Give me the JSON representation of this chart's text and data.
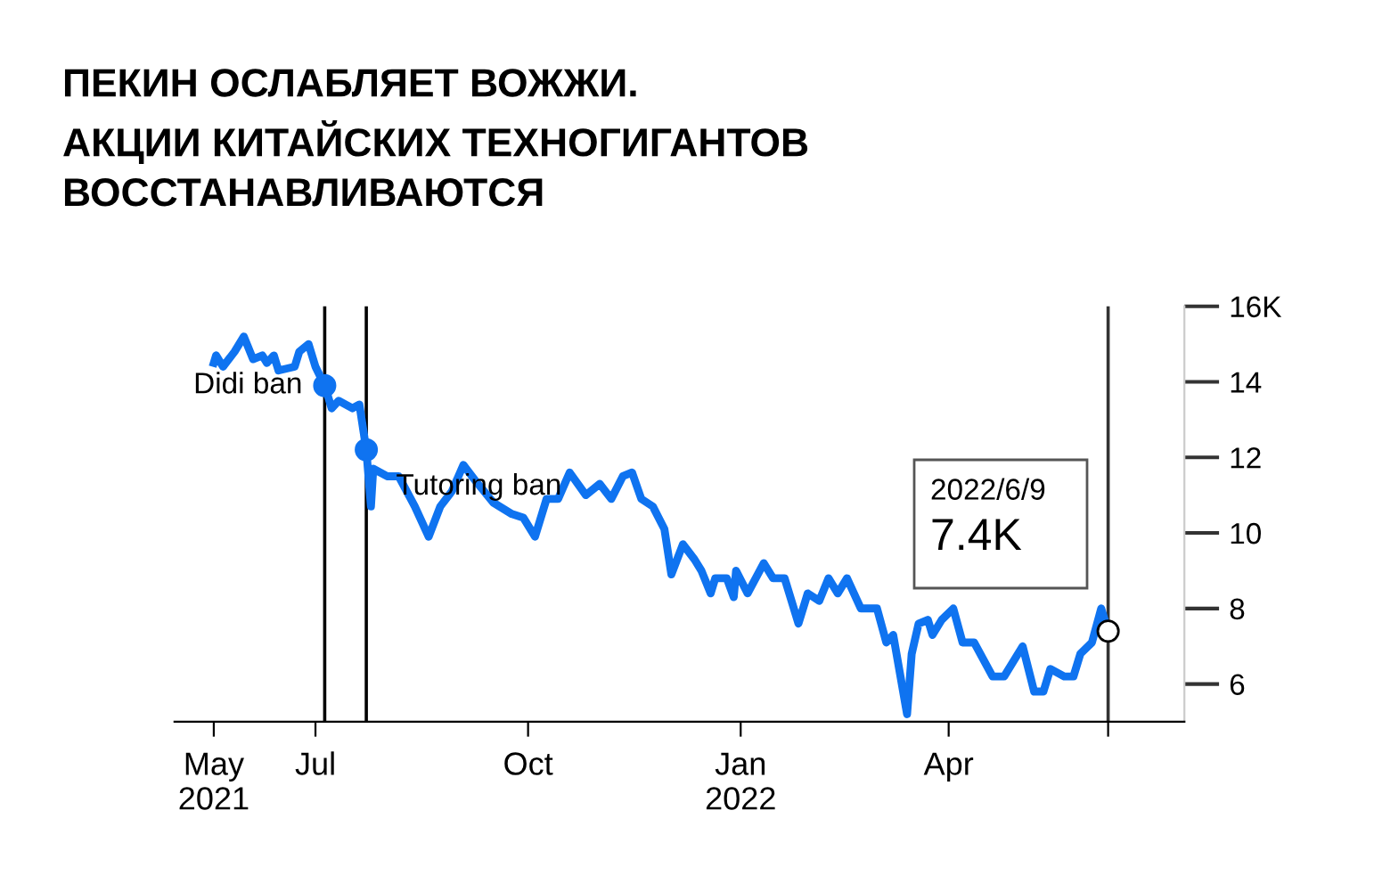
{
  "chart_data": {
    "type": "line",
    "title": "ПЕКИН ОСЛАБЛЯЕТ ВОЖЖИ.\nАКЦИИ КИТАЙСКИХ ТЕХНОГИГАНТОВ\nВОССТАНАВЛИВАЮТСЯ",
    "series": [
      {
        "color": "#0f73f0",
        "x": [
          "2021-05-18",
          "2021-05-19",
          "2021-05-22",
          "2021-05-27",
          "2021-05-31",
          "2021-06-04",
          "2021-06-08",
          "2021-06-10",
          "2021-06-13",
          "2021-06-15",
          "2021-06-22",
          "2021-06-24",
          "2021-06-28",
          "2021-07-01",
          "2021-07-05",
          "2021-07-08",
          "2021-07-11",
          "2021-07-17",
          "2021-07-20",
          "2021-07-23",
          "2021-07-25",
          "2021-07-26",
          "2021-08-01",
          "2021-08-06",
          "2021-08-13",
          "2021-08-19",
          "2021-08-24",
          "2021-08-29",
          "2021-09-03",
          "2021-09-08",
          "2021-09-16",
          "2021-09-24",
          "2021-09-29",
          "2021-10-04",
          "2021-10-09",
          "2021-10-14",
          "2021-10-19",
          "2021-10-26",
          "2021-11-01",
          "2021-11-06",
          "2021-11-11",
          "2021-11-15",
          "2021-11-19",
          "2021-11-24",
          "2021-11-29",
          "2021-12-02",
          "2021-12-07",
          "2021-12-12",
          "2021-12-15",
          "2021-12-19",
          "2021-12-21",
          "2021-12-26",
          "2021-12-29",
          "2021-12-30",
          "2022-01-04",
          "2022-01-11",
          "2022-01-15",
          "2022-01-20",
          "2022-01-26",
          "2022-01-30",
          "2022-02-04",
          "2022-02-08",
          "2022-02-12",
          "2022-02-16",
          "2022-02-22",
          "2022-03-01",
          "2022-03-05",
          "2022-03-08",
          "2022-03-14",
          "2022-03-16",
          "2022-03-19",
          "2022-03-23",
          "2022-03-25",
          "2022-03-29",
          "2022-04-03",
          "2022-04-07",
          "2022-04-12",
          "2022-04-20",
          "2022-04-25",
          "2022-05-03",
          "2022-05-08",
          "2022-05-12",
          "2022-05-15",
          "2022-05-21",
          "2022-05-25",
          "2022-05-28",
          "2022-06-02",
          "2022-06-06",
          "2022-06-09"
        ],
        "values": [
          14.5,
          14.7,
          14.4,
          14.8,
          15.2,
          14.6,
          14.7,
          14.5,
          14.7,
          14.3,
          14.4,
          14.8,
          15.0,
          14.4,
          13.9,
          13.3,
          13.5,
          13.3,
          13.4,
          12.2,
          10.7,
          11.7,
          11.5,
          11.5,
          10.7,
          9.9,
          10.7,
          11.1,
          11.8,
          11.4,
          10.8,
          10.5,
          10.4,
          9.9,
          10.9,
          10.9,
          11.6,
          11.0,
          11.3,
          10.9,
          11.5,
          11.6,
          10.9,
          10.7,
          10.1,
          8.9,
          9.7,
          9.3,
          9.0,
          8.4,
          8.8,
          8.8,
          8.3,
          9.0,
          8.4,
          9.2,
          8.8,
          8.8,
          7.6,
          8.4,
          8.2,
          8.8,
          8.4,
          8.8,
          8.0,
          8.0,
          7.1,
          7.3,
          5.2,
          6.8,
          7.6,
          7.7,
          7.3,
          7.7,
          8.0,
          7.1,
          7.1,
          6.2,
          6.2,
          7.0,
          5.8,
          5.8,
          6.4,
          6.2,
          6.2,
          6.8,
          7.1,
          8.0,
          7.4
        ]
      },
      {
        "type": "scatter",
        "color": "#0f73f0",
        "marker": "circle",
        "x": [
          "2021-07-05",
          "2021-07-23"
        ],
        "values": [
          13.9,
          12.2
        ]
      },
      {
        "type": "scatter",
        "color": "#ffffff",
        "marker": "circle",
        "x": [
          "2022-06-09"
        ],
        "values": [
          7.4
        ]
      }
    ],
    "xlim": [
      "2021-05-01",
      "2022-07-12"
    ],
    "xticks": [
      {
        "value": "2021-05-18",
        "label": "May\n2021"
      },
      {
        "value": "2021-07-01",
        "label": "Jul"
      },
      {
        "value": "2021-10-01",
        "label": "Oct"
      },
      {
        "value": "2022-01-01",
        "label": "Jan\n2022"
      },
      {
        "value": "2022-04-01",
        "label": "Apr"
      },
      {
        "value": "2022-06-09",
        "label": null
      }
    ],
    "ylim": [
      5,
      16
    ],
    "yticks": [
      6,
      8,
      10,
      12,
      14,
      {
        "value": 16,
        "label": "16K"
      }
    ],
    "ref_lines": [
      {
        "axis": "x",
        "value": "2021-07-05",
        "color": "#000000"
      },
      {
        "axis": "x",
        "value": "2021-07-23",
        "color": "#000000"
      },
      {
        "axis": "x",
        "value": "2022-06-09",
        "color": "#333333"
      }
    ],
    "annotations": [
      {
        "text": "Didi ban",
        "x": "2021-07-05",
        "y": 13.9
      },
      {
        "text": "Tutoring ban",
        "x": "2021-07-23",
        "y": 12.2
      },
      "2022/6/9",
      "7.4K"
    ],
    "grid": false,
    "legend": false,
    "line_style": "solid"
  }
}
